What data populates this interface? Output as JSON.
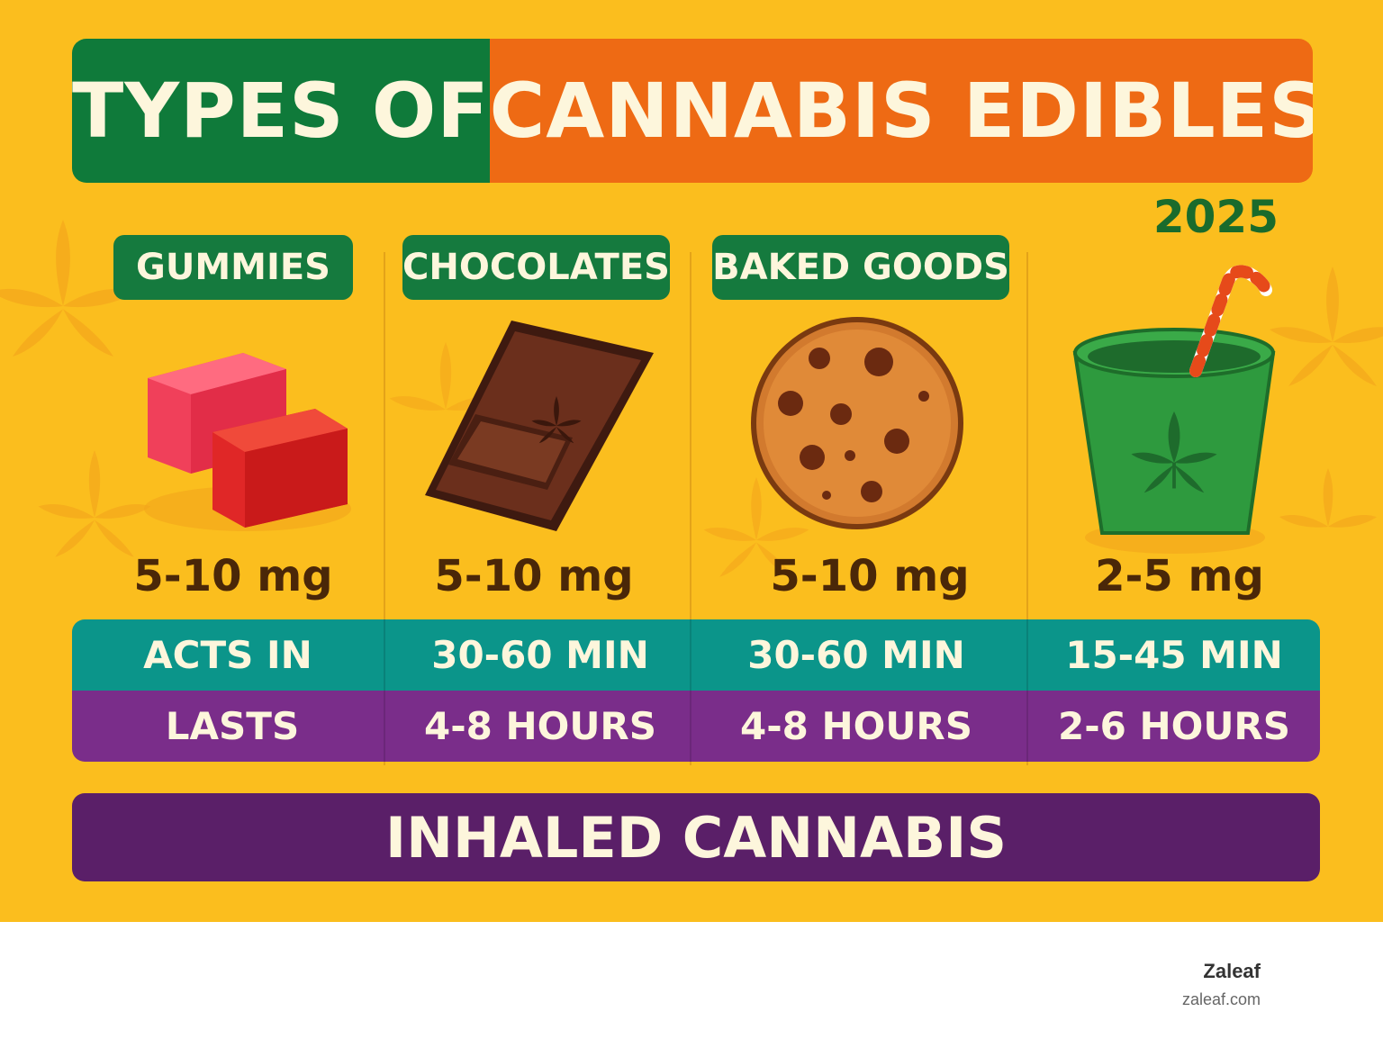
{
  "title": {
    "part1": "TYPES OF",
    "part2": "CANNABIS EDIBLES"
  },
  "year": "2025",
  "columns": [
    {
      "label": "GUMMIES",
      "dose": "5-10 mg",
      "icon": "gummy-cubes-icon"
    },
    {
      "label": "CHOCOLATES",
      "dose": "5-10 mg",
      "icon": "chocolate-bar-icon"
    },
    {
      "label": "BAKED GOODS",
      "dose": "5-10 mg",
      "icon": "cookie-icon"
    },
    {
      "label": "",
      "dose": "2-5 mg",
      "icon": "beverage-cup-icon"
    }
  ],
  "table": {
    "acts": [
      "ACTS IN",
      "30-60 MIN",
      "30-60 MIN",
      "15-45 MIN"
    ],
    "lasts": [
      "LASTS",
      "4-8 HOURS",
      "4-8 HOURS",
      "2-6 HOURS"
    ]
  },
  "footer": {
    "label": "INHALED CANNABIS"
  },
  "brand": {
    "name": "Zaleaf",
    "url": "zaleaf.com"
  },
  "colors": {
    "background": "#fbbe1e",
    "title_green": "#0f7a3a",
    "title_orange": "#ee6a14",
    "acts_teal": "#0b958a",
    "lasts_purple": "#7a2d8a",
    "footer_purple": "#5a1f68",
    "dose_brown": "#4a2708"
  }
}
